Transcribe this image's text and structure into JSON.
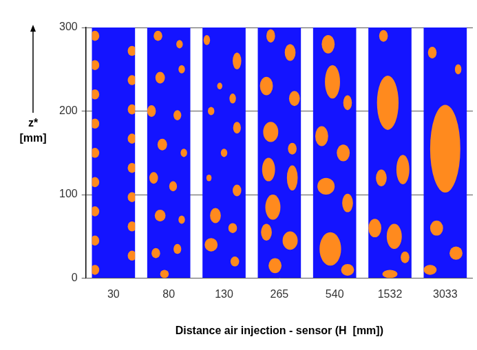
{
  "chart_data": {
    "type": "image_strips",
    "x_label": "Distance air injection - sensor (H  [mm])",
    "y_label": "z* [mm]",
    "categories": [
      "30",
      "80",
      "130",
      "265",
      "540",
      "1532",
      "3033"
    ],
    "ylim": [
      0,
      300
    ],
    "yticks": [
      0,
      100,
      200,
      300
    ],
    "grid": true,
    "color": "#1414ff",
    "bubbles": {
      "color": "#ff8a1e",
      "columns": [
        [
          {
            "x": 0.07,
            "z": 290,
            "w": 0.2,
            "h": 12
          },
          {
            "x": 0.07,
            "z": 255,
            "w": 0.2,
            "h": 12
          },
          {
            "x": 0.07,
            "z": 220,
            "w": 0.2,
            "h": 12
          },
          {
            "x": 0.07,
            "z": 185,
            "w": 0.2,
            "h": 12
          },
          {
            "x": 0.07,
            "z": 150,
            "w": 0.2,
            "h": 12
          },
          {
            "x": 0.07,
            "z": 115,
            "w": 0.2,
            "h": 12
          },
          {
            "x": 0.07,
            "z": 80,
            "w": 0.2,
            "h": 12
          },
          {
            "x": 0.07,
            "z": 45,
            "w": 0.2,
            "h": 12
          },
          {
            "x": 0.07,
            "z": 10,
            "w": 0.2,
            "h": 12
          },
          {
            "x": 0.93,
            "z": 272,
            "w": 0.2,
            "h": 12
          },
          {
            "x": 0.93,
            "z": 237,
            "w": 0.2,
            "h": 12
          },
          {
            "x": 0.93,
            "z": 202,
            "w": 0.2,
            "h": 12
          },
          {
            "x": 0.93,
            "z": 167,
            "w": 0.2,
            "h": 12
          },
          {
            "x": 0.93,
            "z": 132,
            "w": 0.2,
            "h": 12
          },
          {
            "x": 0.93,
            "z": 97,
            "w": 0.2,
            "h": 12
          },
          {
            "x": 0.93,
            "z": 62,
            "w": 0.2,
            "h": 12
          },
          {
            "x": 0.93,
            "z": 27,
            "w": 0.2,
            "h": 12
          }
        ],
        [
          {
            "x": 0.25,
            "z": 290,
            "w": 0.2,
            "h": 12
          },
          {
            "x": 0.75,
            "z": 280,
            "w": 0.15,
            "h": 10
          },
          {
            "x": 0.3,
            "z": 240,
            "w": 0.22,
            "h": 14
          },
          {
            "x": 0.8,
            "z": 250,
            "w": 0.15,
            "h": 10
          },
          {
            "x": 0.1,
            "z": 200,
            "w": 0.2,
            "h": 14
          },
          {
            "x": 0.7,
            "z": 195,
            "w": 0.18,
            "h": 12
          },
          {
            "x": 0.35,
            "z": 160,
            "w": 0.22,
            "h": 14
          },
          {
            "x": 0.85,
            "z": 150,
            "w": 0.15,
            "h": 10
          },
          {
            "x": 0.15,
            "z": 120,
            "w": 0.2,
            "h": 14
          },
          {
            "x": 0.6,
            "z": 110,
            "w": 0.18,
            "h": 12
          },
          {
            "x": 0.3,
            "z": 75,
            "w": 0.25,
            "h": 14
          },
          {
            "x": 0.8,
            "z": 70,
            "w": 0.15,
            "h": 10
          },
          {
            "x": 0.2,
            "z": 30,
            "w": 0.2,
            "h": 12
          },
          {
            "x": 0.7,
            "z": 35,
            "w": 0.18,
            "h": 12
          },
          {
            "x": 0.4,
            "z": 5,
            "w": 0.2,
            "h": 10
          }
        ],
        [
          {
            "x": 0.1,
            "z": 285,
            "w": 0.15,
            "h": 12
          },
          {
            "x": 0.8,
            "z": 260,
            "w": 0.2,
            "h": 20
          },
          {
            "x": 0.4,
            "z": 230,
            "w": 0.12,
            "h": 8
          },
          {
            "x": 0.7,
            "z": 215,
            "w": 0.15,
            "h": 12
          },
          {
            "x": 0.2,
            "z": 200,
            "w": 0.15,
            "h": 10
          },
          {
            "x": 0.8,
            "z": 180,
            "w": 0.18,
            "h": 14
          },
          {
            "x": 0.5,
            "z": 150,
            "w": 0.15,
            "h": 10
          },
          {
            "x": 0.15,
            "z": 120,
            "w": 0.12,
            "h": 8
          },
          {
            "x": 0.8,
            "z": 105,
            "w": 0.2,
            "h": 14
          },
          {
            "x": 0.3,
            "z": 75,
            "w": 0.25,
            "h": 18
          },
          {
            "x": 0.7,
            "z": 60,
            "w": 0.2,
            "h": 12
          },
          {
            "x": 0.2,
            "z": 40,
            "w": 0.3,
            "h": 16
          },
          {
            "x": 0.75,
            "z": 20,
            "w": 0.2,
            "h": 12
          }
        ],
        [
          {
            "x": 0.3,
            "z": 290,
            "w": 0.2,
            "h": 16
          },
          {
            "x": 0.75,
            "z": 270,
            "w": 0.25,
            "h": 20
          },
          {
            "x": 0.2,
            "z": 230,
            "w": 0.3,
            "h": 22
          },
          {
            "x": 0.85,
            "z": 215,
            "w": 0.25,
            "h": 18
          },
          {
            "x": 0.3,
            "z": 175,
            "w": 0.35,
            "h": 24
          },
          {
            "x": 0.8,
            "z": 155,
            "w": 0.2,
            "h": 14
          },
          {
            "x": 0.25,
            "z": 130,
            "w": 0.3,
            "h": 28
          },
          {
            "x": 0.8,
            "z": 120,
            "w": 0.25,
            "h": 30
          },
          {
            "x": 0.35,
            "z": 85,
            "w": 0.35,
            "h": 30
          },
          {
            "x": 0.75,
            "z": 45,
            "w": 0.35,
            "h": 22
          },
          {
            "x": 0.2,
            "z": 55,
            "w": 0.25,
            "h": 20
          },
          {
            "x": 0.4,
            "z": 15,
            "w": 0.3,
            "h": 18
          }
        ],
        [
          {
            "x": 0.35,
            "z": 280,
            "w": 0.3,
            "h": 22
          },
          {
            "x": 0.45,
            "z": 235,
            "w": 0.35,
            "h": 40
          },
          {
            "x": 0.8,
            "z": 210,
            "w": 0.2,
            "h": 18
          },
          {
            "x": 0.2,
            "z": 170,
            "w": 0.3,
            "h": 24
          },
          {
            "x": 0.7,
            "z": 150,
            "w": 0.3,
            "h": 20
          },
          {
            "x": 0.3,
            "z": 110,
            "w": 0.4,
            "h": 20
          },
          {
            "x": 0.8,
            "z": 90,
            "w": 0.25,
            "h": 22
          },
          {
            "x": 0.4,
            "z": 35,
            "w": 0.5,
            "h": 40
          },
          {
            "x": 0.8,
            "z": 10,
            "w": 0.3,
            "h": 14
          }
        ],
        [
          {
            "x": 0.35,
            "z": 290,
            "w": 0.2,
            "h": 14
          },
          {
            "x": 0.45,
            "z": 210,
            "w": 0.5,
            "h": 65
          },
          {
            "x": 0.8,
            "z": 130,
            "w": 0.3,
            "h": 35
          },
          {
            "x": 0.3,
            "z": 120,
            "w": 0.25,
            "h": 20
          },
          {
            "x": 0.15,
            "z": 60,
            "w": 0.3,
            "h": 22
          },
          {
            "x": 0.6,
            "z": 50,
            "w": 0.35,
            "h": 30
          },
          {
            "x": 0.85,
            "z": 25,
            "w": 0.2,
            "h": 14
          },
          {
            "x": 0.5,
            "z": 5,
            "w": 0.35,
            "h": 10
          }
        ],
        [
          {
            "x": 0.5,
            "z": 155,
            "w": 0.7,
            "h": 105
          },
          {
            "x": 0.2,
            "z": 270,
            "w": 0.2,
            "h": 14
          },
          {
            "x": 0.8,
            "z": 250,
            "w": 0.15,
            "h": 12
          },
          {
            "x": 0.3,
            "z": 60,
            "w": 0.3,
            "h": 18
          },
          {
            "x": 0.75,
            "z": 30,
            "w": 0.3,
            "h": 16
          },
          {
            "x": 0.15,
            "z": 10,
            "w": 0.3,
            "h": 12
          }
        ]
      ]
    }
  }
}
